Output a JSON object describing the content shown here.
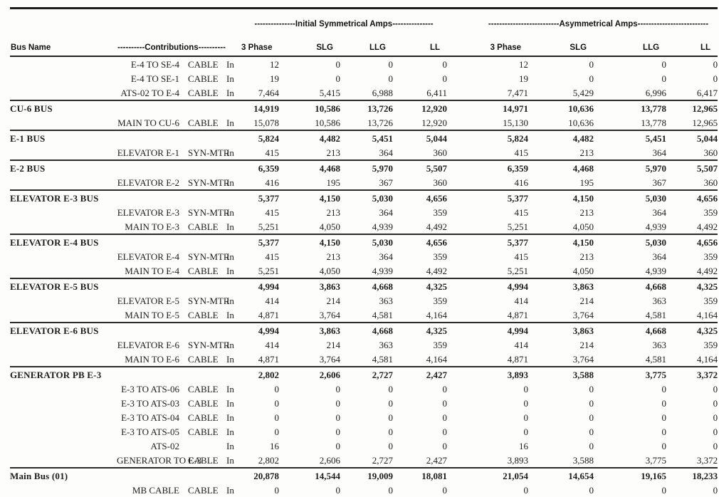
{
  "header": {
    "bus_name_label": "Bus Name",
    "contributions_label": "----------Contributions----------",
    "sym_group_label": "---------------Initial Symmetrical Amps---------------",
    "asym_group_label": "--------------------------Asymmetrical Amps--------------------------",
    "columns": [
      "3 Phase",
      "SLG",
      "LLG",
      "LL"
    ]
  },
  "table": {
    "direction_label": "In",
    "groups": [
      {
        "bus": null,
        "totals": null,
        "rows": [
          {
            "name": "E-4 TO SE-4",
            "type": "CABLE",
            "dir": "In",
            "values": [
              "12",
              "0",
              "0",
              "0",
              "12",
              "0",
              "0",
              "0"
            ]
          },
          {
            "name": "E-4 TO SE-1",
            "type": "CABLE",
            "dir": "In",
            "values": [
              "19",
              "0",
              "0",
              "0",
              "19",
              "0",
              "0",
              "0"
            ]
          },
          {
            "name": "ATS-02 TO E-4",
            "type": "CABLE",
            "dir": "In",
            "values": [
              "7,464",
              "5,415",
              "6,988",
              "6,411",
              "7,471",
              "5,429",
              "6,996",
              "6,417"
            ]
          }
        ]
      },
      {
        "bus": "CU-6 BUS",
        "totals": [
          "14,919",
          "10,586",
          "13,726",
          "12,920",
          "14,971",
          "10,636",
          "13,778",
          "12,965"
        ],
        "rows": [
          {
            "name": "MAIN TO CU-6",
            "type": "CABLE",
            "dir": "In",
            "values": [
              "15,078",
              "10,586",
              "13,726",
              "12,920",
              "15,130",
              "10,636",
              "13,778",
              "12,965"
            ]
          }
        ]
      },
      {
        "bus": "E-1 BUS",
        "totals": [
          "5,824",
          "4,482",
          "5,451",
          "5,044",
          "5,824",
          "4,482",
          "5,451",
          "5,044"
        ],
        "rows": [
          {
            "name": "ELEVATOR E-1",
            "type": "SYN-MTR",
            "dir": "In",
            "values": [
              "415",
              "213",
              "364",
              "360",
              "415",
              "213",
              "364",
              "360"
            ]
          }
        ]
      },
      {
        "bus": "E-2 BUS",
        "totals": [
          "6,359",
          "4,468",
          "5,970",
          "5,507",
          "6,359",
          "4,468",
          "5,970",
          "5,507"
        ],
        "rows": [
          {
            "name": "ELEVATOR E-2",
            "type": "SYN-MTR",
            "dir": "In",
            "values": [
              "416",
              "195",
              "367",
              "360",
              "416",
              "195",
              "367",
              "360"
            ]
          }
        ]
      },
      {
        "bus": "ELEVATOR E-3 BUS",
        "totals": [
          "5,377",
          "4,150",
          "5,030",
          "4,656",
          "5,377",
          "4,150",
          "5,030",
          "4,656"
        ],
        "rows": [
          {
            "name": "ELEVATOR E-3",
            "type": "SYN-MTR",
            "dir": "In",
            "values": [
              "415",
              "213",
              "364",
              "359",
              "415",
              "213",
              "364",
              "359"
            ]
          },
          {
            "name": "MAIN TO E-3",
            "type": "CABLE",
            "dir": "In",
            "values": [
              "5,251",
              "4,050",
              "4,939",
              "4,492",
              "5,251",
              "4,050",
              "4,939",
              "4,492"
            ]
          }
        ]
      },
      {
        "bus": "ELEVATOR E-4 BUS",
        "totals": [
          "5,377",
          "4,150",
          "5,030",
          "4,656",
          "5,377",
          "4,150",
          "5,030",
          "4,656"
        ],
        "rows": [
          {
            "name": "ELEVATOR E-4",
            "type": "SYN-MTR",
            "dir": "In",
            "values": [
              "415",
              "213",
              "364",
              "359",
              "415",
              "213",
              "364",
              "359"
            ]
          },
          {
            "name": "MAIN TO E-4",
            "type": "CABLE",
            "dir": "In",
            "values": [
              "5,251",
              "4,050",
              "4,939",
              "4,492",
              "5,251",
              "4,050",
              "4,939",
              "4,492"
            ]
          }
        ]
      },
      {
        "bus": "ELEVATOR E-5 BUS",
        "totals": [
          "4,994",
          "3,863",
          "4,668",
          "4,325",
          "4,994",
          "3,863",
          "4,668",
          "4,325"
        ],
        "rows": [
          {
            "name": "ELEVATOR E-5",
            "type": "SYN-MTR",
            "dir": "In",
            "values": [
              "414",
              "214",
              "363",
              "359",
              "414",
              "214",
              "363",
              "359"
            ]
          },
          {
            "name": "MAIN TO E-5",
            "type": "CABLE",
            "dir": "In",
            "values": [
              "4,871",
              "3,764",
              "4,581",
              "4,164",
              "4,871",
              "3,764",
              "4,581",
              "4,164"
            ]
          }
        ]
      },
      {
        "bus": "ELEVATOR E-6 BUS",
        "totals": [
          "4,994",
          "3,863",
          "4,668",
          "4,325",
          "4,994",
          "3,863",
          "4,668",
          "4,325"
        ],
        "rows": [
          {
            "name": "ELEVATOR E-6",
            "type": "SYN-MTR",
            "dir": "In",
            "values": [
              "414",
              "214",
              "363",
              "359",
              "414",
              "214",
              "363",
              "359"
            ]
          },
          {
            "name": "MAIN TO E-6",
            "type": "CABLE",
            "dir": "In",
            "values": [
              "4,871",
              "3,764",
              "4,581",
              "4,164",
              "4,871",
              "3,764",
              "4,581",
              "4,164"
            ]
          }
        ]
      },
      {
        "bus": "GENERATOR PB E-3",
        "totals": [
          "2,802",
          "2,606",
          "2,727",
          "2,427",
          "3,893",
          "3,588",
          "3,775",
          "3,372"
        ],
        "rows": [
          {
            "name": "E-3 TO ATS-06",
            "type": "CABLE",
            "dir": "In",
            "values": [
              "0",
              "0",
              "0",
              "0",
              "0",
              "0",
              "0",
              "0"
            ]
          },
          {
            "name": "E-3 TO ATS-03",
            "type": "CABLE",
            "dir": "In",
            "values": [
              "0",
              "0",
              "0",
              "0",
              "0",
              "0",
              "0",
              "0"
            ]
          },
          {
            "name": "E-3 TO ATS-04",
            "type": "CABLE",
            "dir": "In",
            "values": [
              "0",
              "0",
              "0",
              "0",
              "0",
              "0",
              "0",
              "0"
            ]
          },
          {
            "name": "E-3 TO ATS-05",
            "type": "CABLE",
            "dir": "In",
            "values": [
              "0",
              "0",
              "0",
              "0",
              "0",
              "0",
              "0",
              "0"
            ]
          },
          {
            "name": "ATS-02",
            "type": "",
            "dir": "In",
            "values": [
              "16",
              "0",
              "0",
              "0",
              "16",
              "0",
              "0",
              "0"
            ]
          },
          {
            "name": "GENERATOR TO E-3",
            "type": "CABLE",
            "dir": "In",
            "values": [
              "2,802",
              "2,606",
              "2,727",
              "2,427",
              "3,893",
              "3,588",
              "3,775",
              "3,372"
            ]
          }
        ]
      },
      {
        "bus": "Main Bus (01)",
        "totals": [
          "20,878",
          "14,544",
          "19,009",
          "18,081",
          "21,054",
          "14,654",
          "19,165",
          "18,233"
        ],
        "rows": [
          {
            "name": "MB CABLE",
            "type": "CABLE",
            "dir": "In",
            "values": [
              "0",
              "0",
              "0",
              "0",
              "0",
              "0",
              "0",
              "0"
            ]
          }
        ]
      }
    ]
  }
}
